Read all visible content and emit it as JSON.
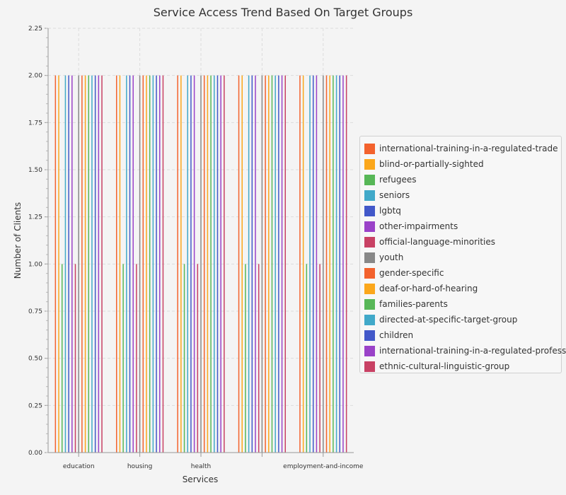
{
  "chart_data": {
    "type": "bar",
    "title": "Service Access Trend Based On Target Groups",
    "xlabel": "Services",
    "ylabel": "Number of Clients",
    "ylim": [
      0,
      2.25
    ],
    "yticks": [
      "0.00",
      "0.25",
      "0.50",
      "0.75",
      "1.00",
      "1.25",
      "1.50",
      "1.75",
      "2.00",
      "2.25"
    ],
    "categories": [
      "education",
      "housing",
      "health",
      "",
      "employment-and-income"
    ],
    "grid": true,
    "legend_position": "right",
    "series": [
      {
        "name": "international-training-in-a-regulated-trade",
        "color": "#f3622d",
        "values": [
          2,
          2,
          2,
          2,
          2
        ]
      },
      {
        "name": "blind-or-partially-sighted",
        "color": "#fba71b",
        "values": [
          2,
          2,
          2,
          2,
          2
        ]
      },
      {
        "name": "refugees",
        "color": "#57b757",
        "values": [
          1,
          1,
          1,
          1,
          1
        ]
      },
      {
        "name": "seniors",
        "color": "#41a9c9",
        "values": [
          2,
          2,
          2,
          2,
          2
        ]
      },
      {
        "name": "lgbtq",
        "color": "#4258c9",
        "values": [
          2,
          2,
          2,
          2,
          2
        ]
      },
      {
        "name": "other-impairments",
        "color": "#9a42c8",
        "values": [
          2,
          2,
          2,
          2,
          2
        ]
      },
      {
        "name": "official-language-minorities",
        "color": "#c84164",
        "values": [
          1,
          1,
          1,
          1,
          1
        ]
      },
      {
        "name": "youth",
        "color": "#888888",
        "values": [
          2,
          2,
          2,
          2,
          2
        ]
      },
      {
        "name": "gender-specific",
        "color": "#f3622d",
        "values": [
          2,
          2,
          2,
          2,
          2
        ]
      },
      {
        "name": "deaf-or-hard-of-hearing",
        "color": "#fba71b",
        "values": [
          2,
          2,
          2,
          2,
          2
        ]
      },
      {
        "name": "families-parents",
        "color": "#57b757",
        "values": [
          2,
          2,
          2,
          2,
          2
        ]
      },
      {
        "name": "directed-at-specific-target-group",
        "color": "#41a9c9",
        "values": [
          2,
          2,
          2,
          2,
          2
        ]
      },
      {
        "name": "children",
        "color": "#4258c9",
        "values": [
          2,
          2,
          2,
          2,
          2
        ]
      },
      {
        "name": "international-training-in-a-regulated-profession",
        "color": "#9a42c8",
        "values": [
          2,
          2,
          2,
          2,
          2
        ]
      },
      {
        "name": "ethnic-cultural-linguistic-group",
        "color": "#c84164",
        "values": [
          2,
          2,
          2,
          2,
          2
        ]
      }
    ]
  }
}
